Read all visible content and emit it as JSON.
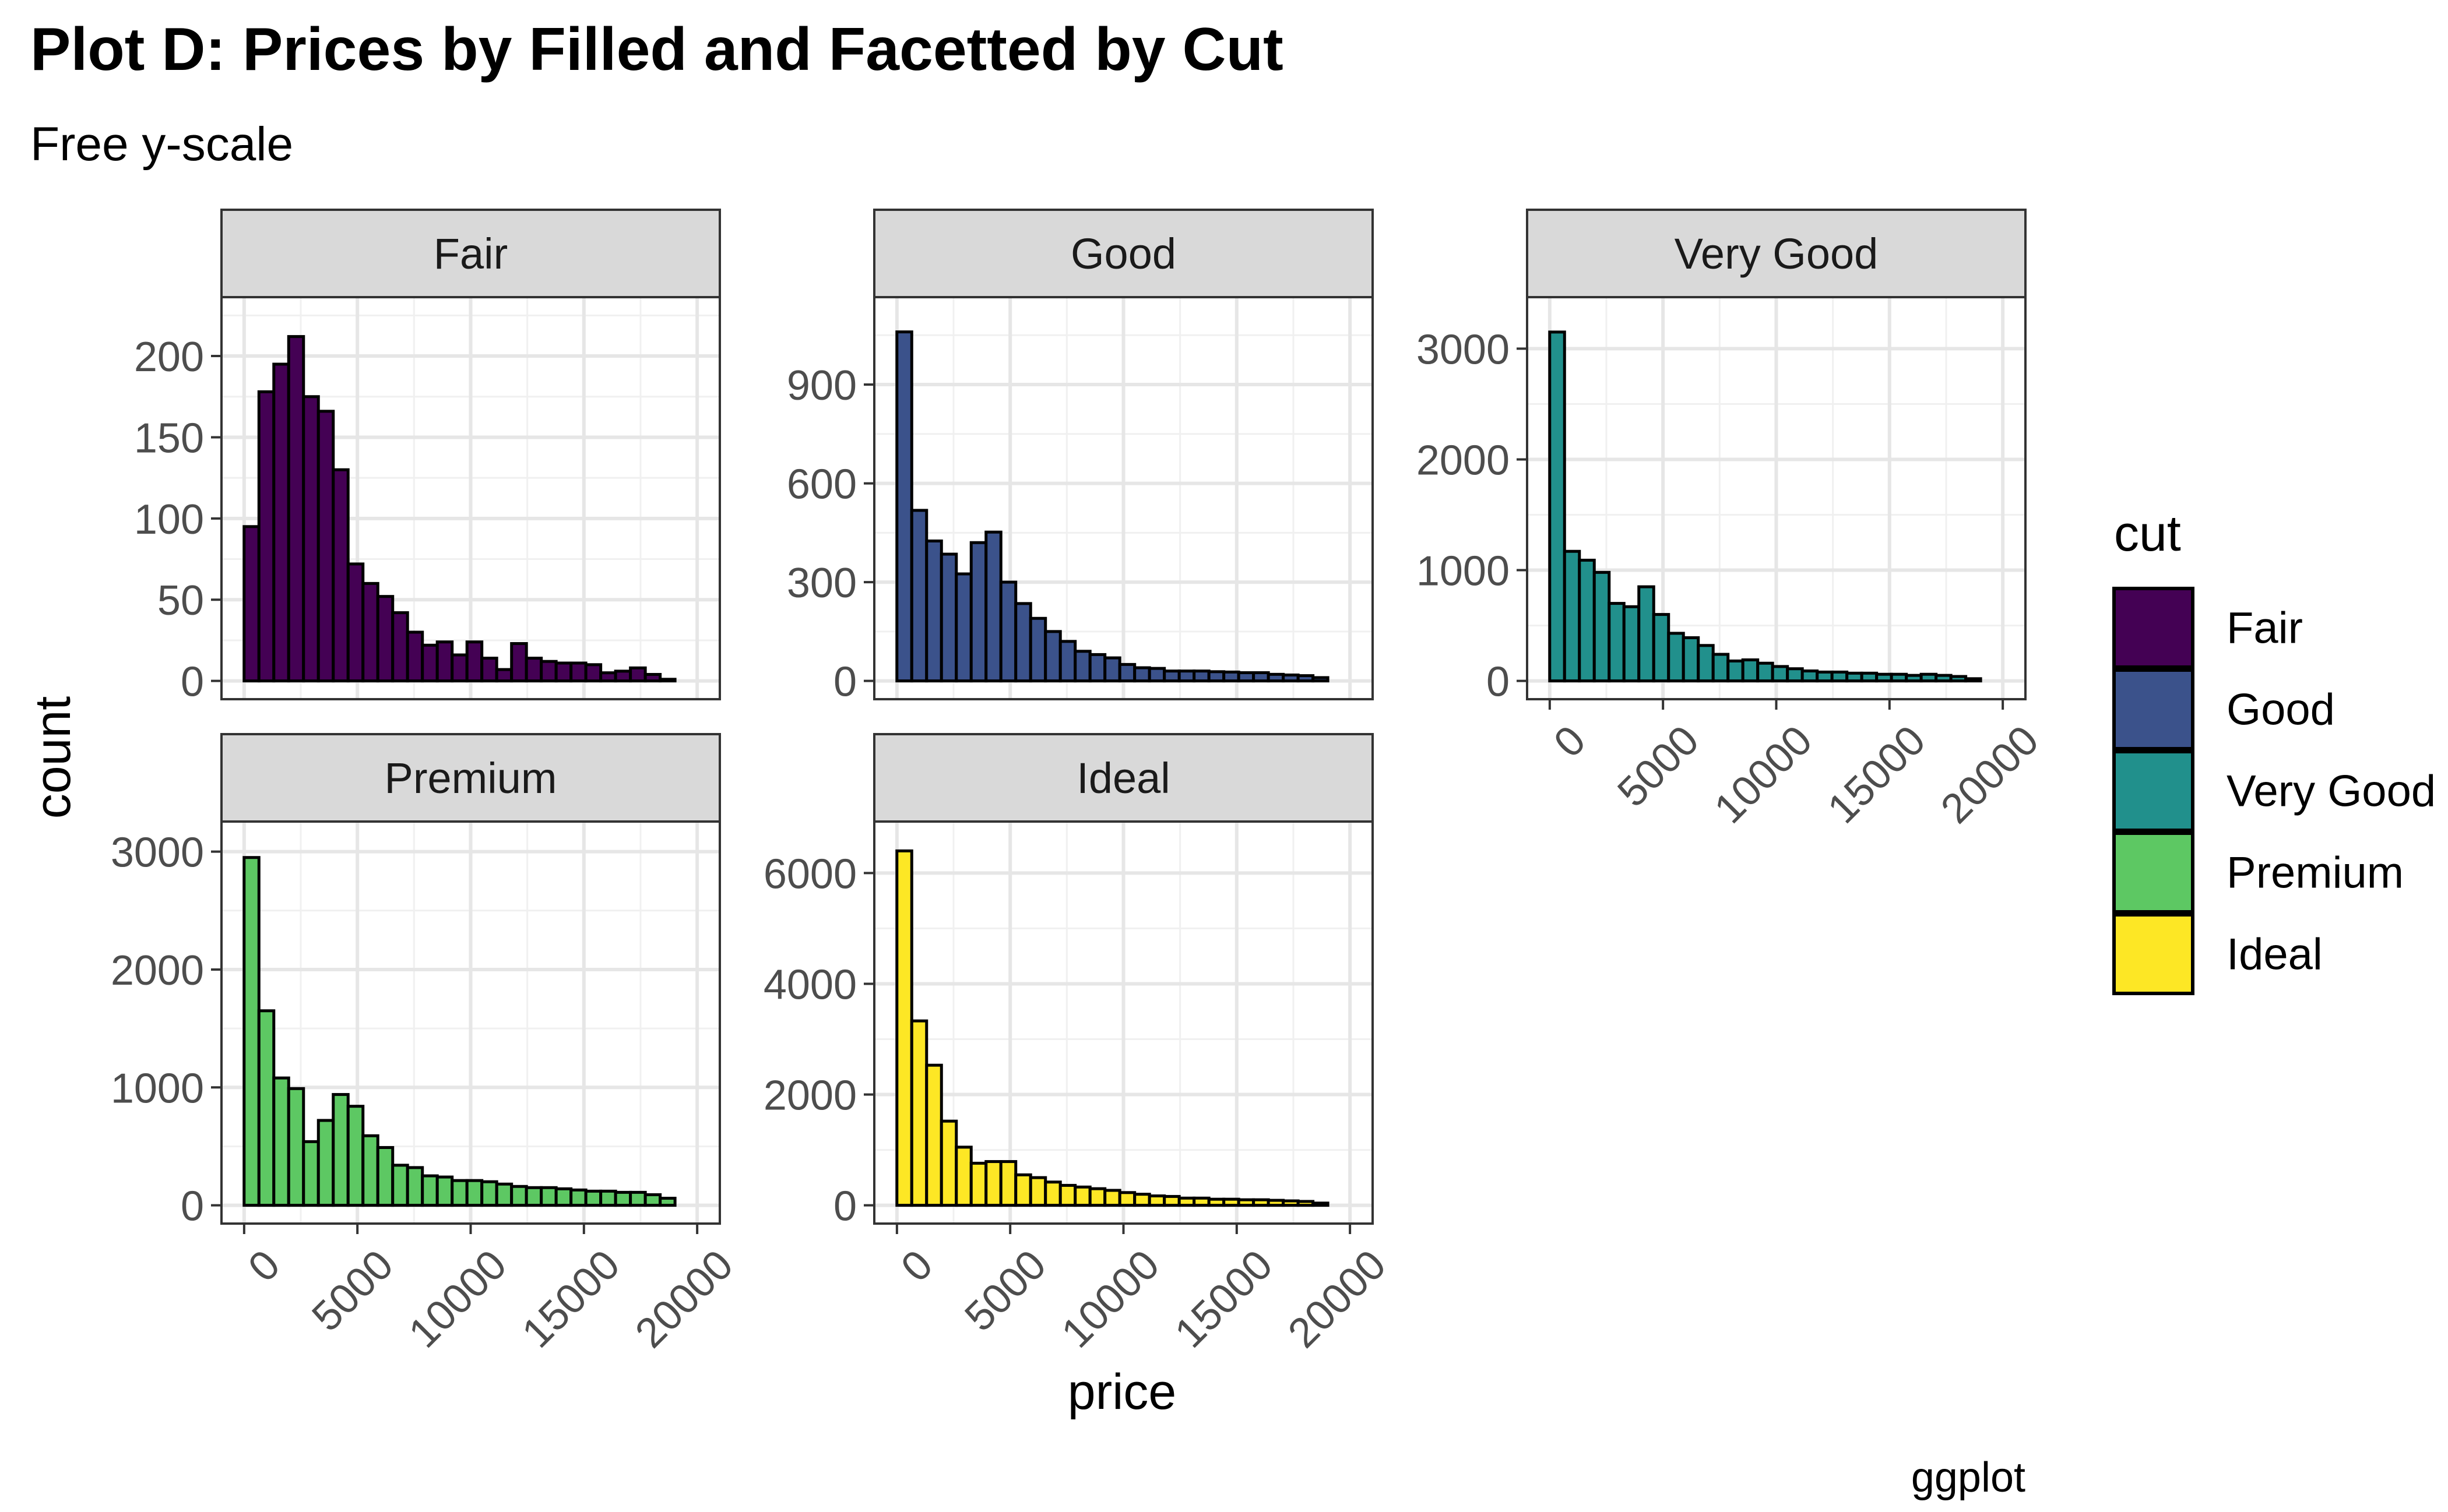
{
  "chart_data": {
    "type": "bar",
    "subtype": "histogram",
    "title": "Plot D: Prices by Filled and Facetted by Cut",
    "subtitle": "Free y-scale",
    "xlabel": "price",
    "ylabel": "count",
    "caption": "ggplot",
    "facet_layout": "3 columns, 2 rows",
    "scales": "free_y",
    "grid": true,
    "xlim": [
      0,
      20000
    ],
    "x_ticks": [
      "0",
      "5000",
      "10000",
      "15000",
      "20000"
    ],
    "x_tick_label_angle": 45,
    "bin_width": 656,
    "bin_centers": [
      326,
      982,
      1638,
      2294,
      2950,
      3606,
      4262,
      4918,
      5574,
      6230,
      6886,
      7542,
      8198,
      8854,
      9510,
      10166,
      10822,
      11478,
      12134,
      12790,
      13446,
      14102,
      14758,
      15414,
      16070,
      16726,
      17382,
      18038,
      18694
    ],
    "legend": {
      "title": "cut",
      "position": "right",
      "entries": [
        {
          "label": "Fair",
          "color": "#440154"
        },
        {
          "label": "Good",
          "color": "#3B528B"
        },
        {
          "label": "Very Good",
          "color": "#21908C"
        },
        {
          "label": "Premium",
          "color": "#5DC863"
        },
        {
          "label": "Ideal",
          "color": "#FDE725"
        }
      ]
    },
    "panels": [
      {
        "name": "Fair",
        "color": "#440154",
        "ylim": [
          0,
          225
        ],
        "y_ticks": [
          0,
          50,
          100,
          150,
          200
        ],
        "counts": [
          95,
          178,
          195,
          212,
          175,
          166,
          130,
          72,
          60,
          52,
          42,
          30,
          22,
          24,
          16,
          24,
          14,
          7,
          23,
          14,
          12,
          11,
          11,
          10,
          5,
          6,
          8,
          4,
          1
        ]
      },
      {
        "name": "Good",
        "color": "#3B528B",
        "ylim": [
          0,
          1110
        ],
        "y_ticks": [
          0,
          300,
          600,
          900
        ],
        "counts": [
          1060,
          518,
          425,
          385,
          325,
          420,
          452,
          300,
          235,
          190,
          150,
          120,
          90,
          80,
          70,
          50,
          40,
          38,
          30,
          30,
          30,
          28,
          27,
          25,
          25,
          20,
          18,
          16,
          10
        ]
      },
      {
        "name": "Very Good",
        "color": "#21908C",
        "ylim": [
          0,
          3300
        ],
        "y_ticks": [
          0,
          1000,
          2000,
          3000
        ],
        "counts": [
          3150,
          1170,
          1090,
          980,
          700,
          670,
          850,
          600,
          430,
          390,
          320,
          240,
          180,
          190,
          160,
          130,
          110,
          90,
          80,
          80,
          70,
          70,
          60,
          60,
          50,
          60,
          50,
          40,
          20
        ]
      },
      {
        "name": "Premium",
        "color": "#5DC863",
        "ylim": [
          0,
          3100
        ],
        "y_ticks": [
          0,
          1000,
          2000,
          3000
        ],
        "counts": [
          2950,
          1650,
          1080,
          990,
          540,
          720,
          940,
          840,
          590,
          490,
          340,
          320,
          250,
          240,
          210,
          210,
          200,
          180,
          160,
          150,
          150,
          140,
          130,
          120,
          120,
          110,
          110,
          90,
          60
        ]
      },
      {
        "name": "Ideal",
        "color": "#FDE725",
        "ylim": [
          0,
          6600
        ],
        "y_ticks": [
          0,
          2000,
          4000,
          6000
        ],
        "counts": [
          6400,
          3330,
          2530,
          1520,
          1050,
          760,
          790,
          790,
          550,
          500,
          420,
          360,
          330,
          300,
          270,
          230,
          200,
          170,
          160,
          130,
          130,
          110,
          110,
          100,
          100,
          90,
          80,
          70,
          40
        ]
      }
    ]
  }
}
